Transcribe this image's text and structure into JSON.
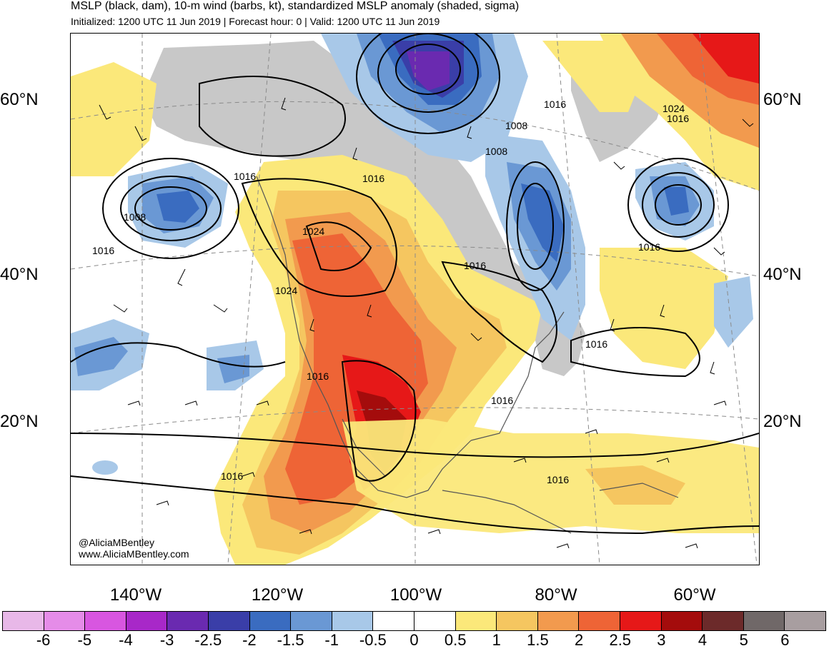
{
  "header": {
    "title": "MSLP (black, dam), 10-m wind (barbs, kt), standardized MSLP anomaly (shaded, sigma)",
    "subtitle": "Initialized: 1200 UTC 11 Jun 2019 | Forecast hour: 0 | Valid: 1200 UTC 11 Jun 2019"
  },
  "map": {
    "lat_labels": [
      "60°N",
      "40°N",
      "20°N"
    ],
    "lon_labels": [
      "140°W",
      "120°W",
      "100°W",
      "80°W",
      "60°W"
    ],
    "isobar_labels": [
      "1016",
      "1008",
      "1016",
      "1016",
      "1008",
      "1008",
      "1016",
      "1024",
      "1016",
      "1024",
      "1016",
      "1024",
      "1016",
      "1016",
      "1016",
      "1016",
      "1016",
      "1016"
    ],
    "credit_handle": "@AliciaMBentley",
    "credit_url": "www.AliciaMBentley.com"
  },
  "colors": {
    "land_gray": "#c8c8c8",
    "grid": "#8a8a8a",
    "isobar": "#000000",
    "coast": "#555555"
  },
  "colorbar": {
    "labels": [
      "-6",
      "-5",
      "-4",
      "-3",
      "-2.5",
      "-2",
      "-1.5",
      "-1",
      "-0.5",
      "0",
      "0.5",
      "1",
      "1.5",
      "2",
      "2.5",
      "3",
      "4",
      "5",
      "6"
    ],
    "colors": [
      "#e8b8e8",
      "#e58ce8",
      "#d856e0",
      "#a828c8",
      "#6a2ab0",
      "#3a3ea8",
      "#3a6cc0",
      "#6a98d4",
      "#a8c8e8",
      "#ffffff",
      "#ffffff",
      "#fbe87a",
      "#f5c660",
      "#f29a4e",
      "#ee6436",
      "#e61818",
      "#a40c0c",
      "#6c2a2a",
      "#706868",
      "#a89ea0"
    ]
  }
}
